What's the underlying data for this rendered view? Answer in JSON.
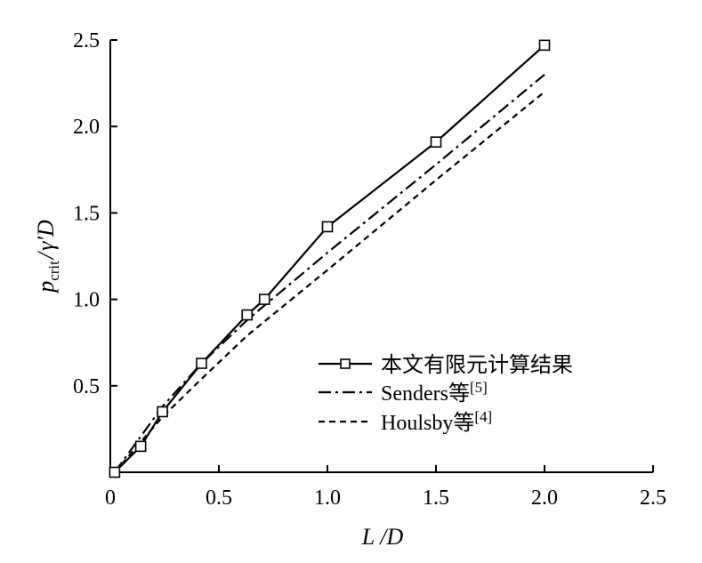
{
  "chart_data": {
    "type": "line",
    "xlabel": "L / D",
    "ylabel": "p_crit / γ'D",
    "xlim": [
      0,
      2.5
    ],
    "ylim": [
      0,
      2.5
    ],
    "x_ticks": [
      "0",
      "0.5",
      "1.0",
      "1.5",
      "2.0",
      "2.5"
    ],
    "y_ticks": [
      "0.5",
      "1.0",
      "1.5",
      "2.0",
      "2.5"
    ],
    "grid": false,
    "legend_position": "lower-right",
    "series": [
      {
        "name": "本文有限元计算结果",
        "style": "solid-square-marker",
        "x": [
          0.02,
          0.14,
          0.24,
          0.42,
          0.63,
          0.71,
          1.0,
          1.5,
          2.0
        ],
        "y": [
          0.0,
          0.15,
          0.35,
          0.63,
          0.91,
          1.0,
          1.42,
          1.91,
          2.47
        ]
      },
      {
        "name": "Senders等[5]",
        "style": "dash-dot",
        "x": [
          0.02,
          0.24,
          0.42,
          0.63,
          1.0,
          1.5,
          2.0
        ],
        "y": [
          0.0,
          0.38,
          0.63,
          0.88,
          1.27,
          1.78,
          2.3
        ]
      },
      {
        "name": "Houlsby等[4]",
        "style": "dashed",
        "x": [
          0.02,
          0.24,
          0.42,
          0.63,
          1.0,
          1.5,
          2.0
        ],
        "y": [
          0.0,
          0.32,
          0.54,
          0.79,
          1.17,
          1.69,
          2.2
        ]
      }
    ]
  },
  "legend": {
    "series0": "本文有限元计算结果",
    "series1_name": "Senders等",
    "series1_ref": "[5]",
    "series2_name": "Houlsby等",
    "series2_ref": "[4]"
  }
}
